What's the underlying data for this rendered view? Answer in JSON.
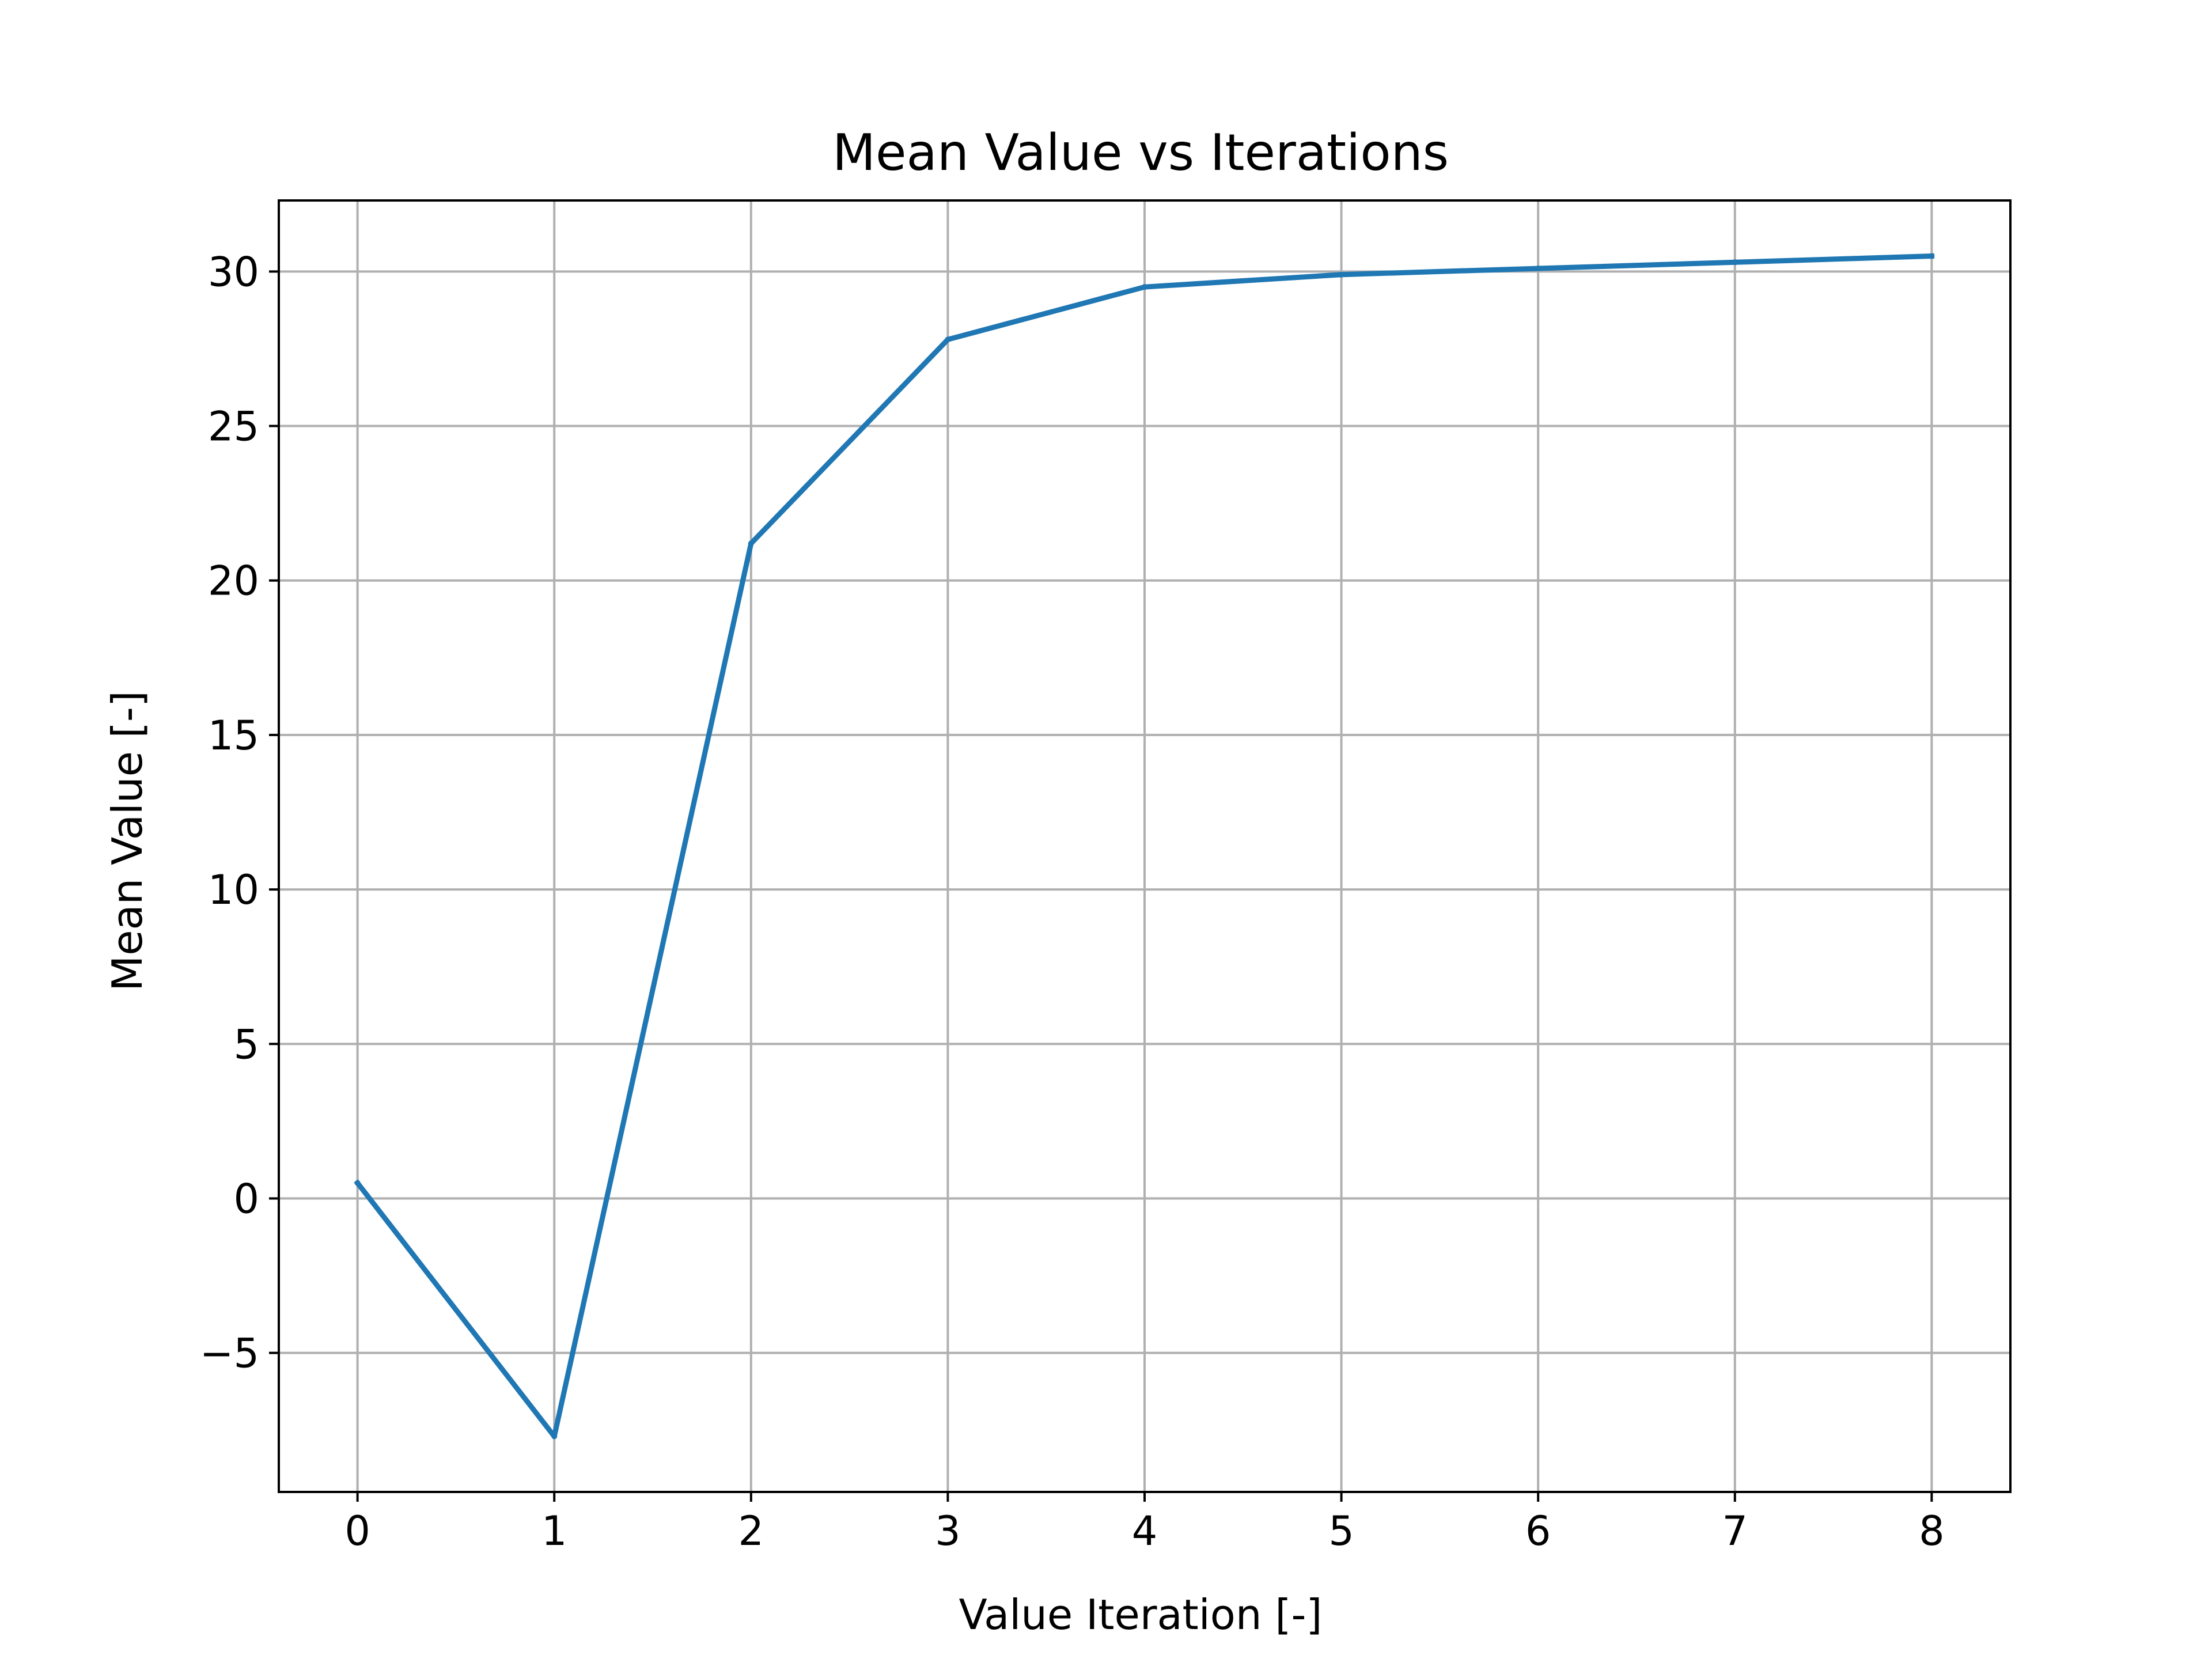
{
  "chart_data": {
    "type": "line",
    "title": "Mean Value vs Iterations",
    "xlabel": "Value Iteration [-]",
    "ylabel": "Mean Value [-]",
    "x": [
      0,
      1,
      2,
      3,
      4,
      5,
      6,
      7,
      8
    ],
    "series": [
      {
        "values": [
          0.5,
          -7.7,
          21.2,
          27.8,
          29.5,
          29.9,
          30.1,
          30.3,
          30.5
        ]
      }
    ],
    "xlim": [
      -0.4,
      8.4
    ],
    "ylim": [
      -9.5,
      32.3
    ],
    "xticks": [
      0,
      1,
      2,
      3,
      4,
      5,
      6,
      7,
      8
    ],
    "xtick_labels": [
      "0",
      "1",
      "2",
      "3",
      "4",
      "5",
      "6",
      "7",
      "8"
    ],
    "yticks": [
      -5,
      0,
      5,
      10,
      15,
      20,
      25,
      30
    ],
    "ytick_labels": [
      "−5",
      "0",
      "5",
      "10",
      "15",
      "20",
      "25",
      "30"
    ],
    "grid": true,
    "colors": {
      "line": "#1f77b4",
      "grid": "#b0b0b0",
      "frame": "#000000"
    }
  }
}
